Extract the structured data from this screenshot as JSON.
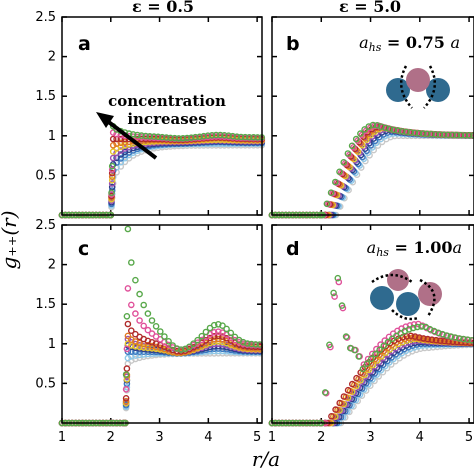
{
  "figure": {
    "column_titles": [
      "ε = 0.5",
      "ε = 5.0"
    ],
    "ylabel": "g₊₊(r)",
    "xlabel": "r/a",
    "annotation_text": [
      "concentration",
      "increases"
    ],
    "hs_labels": [
      "a_hs = 0.75 a",
      "a_hs = 1.00a"
    ],
    "series_colors": [
      "#c8c8c8",
      "#8ec8e8",
      "#3a78c0",
      "#2e3f8a",
      "#9c4fb0",
      "#e6c52a",
      "#e07a22",
      "#b02a2a",
      "#e0509a",
      "#58a84a"
    ],
    "icon_colors": {
      "blue": "#2f6a8f",
      "pink": "#b07088"
    }
  },
  "chart_data": [
    {
      "type": "scatter",
      "panel": "a",
      "xlim": [
        1,
        5.1
      ],
      "ylim": [
        0,
        2.5
      ],
      "xticks": [
        1,
        2,
        3,
        4,
        5
      ],
      "yticks": [
        "",
        "0.5",
        "1",
        "1.5",
        "2",
        "2.5"
      ],
      "x_start": 2.0,
      "contact": 0.15,
      "series": [
        {
          "peak": 0.4,
          "plateau": 0.88,
          "bump": 0.0
        },
        {
          "peak": 0.48,
          "plateau": 0.9,
          "bump": 0.0
        },
        {
          "peak": 0.56,
          "plateau": 0.91,
          "bump": 0.01
        },
        {
          "peak": 0.64,
          "plateau": 0.92,
          "bump": 0.01
        },
        {
          "peak": 0.72,
          "plateau": 0.93,
          "bump": 0.01
        },
        {
          "peak": 0.8,
          "plateau": 0.94,
          "bump": 0.01
        },
        {
          "peak": 0.88,
          "plateau": 0.95,
          "bump": 0.02
        },
        {
          "peak": 0.96,
          "plateau": 0.96,
          "bump": 0.02
        },
        {
          "peak": 1.04,
          "plateau": 0.97,
          "bump": 0.02
        },
        {
          "peak": 1.12,
          "plateau": 0.98,
          "bump": 0.03
        }
      ]
    },
    {
      "type": "scatter",
      "panel": "b",
      "xlim": [
        1,
        5.1
      ],
      "ylim": [
        0,
        2.5
      ],
      "xticks": [
        1,
        2,
        3,
        4,
        5
      ],
      "yticks": [
        "",
        "",
        "",
        "",
        "",
        ""
      ],
      "x_start": 2.0,
      "series": [
        {
          "r0": 2.3,
          "peak": 1.0,
          "rpeak": 3.55
        },
        {
          "r0": 2.27,
          "peak": 1.03,
          "rpeak": 3.5
        },
        {
          "r0": 2.24,
          "peak": 1.05,
          "rpeak": 3.45
        },
        {
          "r0": 2.21,
          "peak": 1.07,
          "rpeak": 3.4
        },
        {
          "r0": 2.18,
          "peak": 1.09,
          "rpeak": 3.35
        },
        {
          "r0": 2.15,
          "peak": 1.1,
          "rpeak": 3.3
        },
        {
          "r0": 2.12,
          "peak": 1.11,
          "rpeak": 3.25
        },
        {
          "r0": 2.09,
          "peak": 1.12,
          "rpeak": 3.2
        },
        {
          "r0": 2.06,
          "peak": 1.13,
          "rpeak": 3.15
        },
        {
          "r0": 2.03,
          "peak": 1.14,
          "rpeak": 3.1
        }
      ]
    },
    {
      "type": "scatter",
      "panel": "c",
      "xlim": [
        1,
        5.1
      ],
      "ylim": [
        0,
        2.5
      ],
      "xticks": [
        1,
        2,
        3,
        4,
        5
      ],
      "yticks": [
        "",
        "0.5",
        "1",
        "1.5",
        "2",
        "2.5"
      ],
      "x_start": 2.3,
      "contact": 0.15,
      "series": [
        {
          "peak": 0.75,
          "plateau": 0.88,
          "bump": 0.0
        },
        {
          "peak": 0.82,
          "plateau": 0.89,
          "bump": 0.02
        },
        {
          "peak": 0.9,
          "plateau": 0.9,
          "bump": 0.04
        },
        {
          "peak": 0.98,
          "plateau": 0.91,
          "bump": 0.06
        },
        {
          "peak": 1.06,
          "plateau": 0.92,
          "bump": 0.08
        },
        {
          "peak": 1.0,
          "plateau": 0.93,
          "bump": 0.1
        },
        {
          "peak": 1.1,
          "plateau": 0.94,
          "bump": 0.12
        },
        {
          "peak": 1.25,
          "plateau": 0.96,
          "bump": 0.14
        },
        {
          "peak": 1.7,
          "plateau": 0.98,
          "bump": 0.17
        },
        {
          "peak": 2.45,
          "plateau": 0.99,
          "bump": 0.25
        }
      ]
    },
    {
      "type": "scatter",
      "panel": "d",
      "xlim": [
        1,
        5.1
      ],
      "ylim": [
        0,
        2.5
      ],
      "xticks": [
        1,
        2,
        3,
        4,
        5
      ],
      "yticks": [
        "",
        "",
        "",
        "",
        "",
        ""
      ],
      "x_start": 2.0,
      "series": [
        {
          "r0": 2.4,
          "peak": 0.95,
          "rpeak": 4.2
        },
        {
          "r0": 2.36,
          "peak": 0.98,
          "rpeak": 4.15
        },
        {
          "r0": 2.32,
          "peak": 1.0,
          "rpeak": 4.1
        },
        {
          "r0": 2.28,
          "peak": 1.02,
          "rpeak": 4.05
        },
        {
          "r0": 2.24,
          "peak": 1.04,
          "rpeak": 4.0
        },
        {
          "r0": 2.2,
          "peak": 1.06,
          "rpeak": 3.95
        },
        {
          "r0": 2.16,
          "peak": 1.08,
          "rpeak": 3.9
        },
        {
          "r0": 2.12,
          "peak": 1.1,
          "rpeak": 3.85
        },
        {
          "r0": 2.1,
          "peak": 1.25,
          "rpeak": 4.0,
          "spike": 1.6
        },
        {
          "r0": 2.08,
          "peak": 1.22,
          "rpeak": 4.1,
          "spike": 1.65
        }
      ]
    }
  ]
}
